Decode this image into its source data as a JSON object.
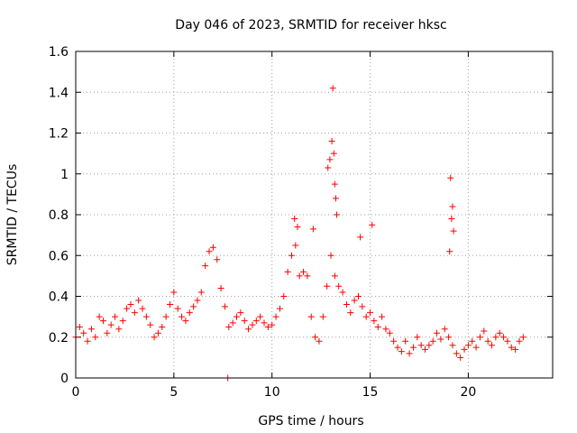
{
  "chart_data": {
    "type": "scatter",
    "title": "Day 046 of 2023, SRMTID for receiver hksc",
    "xlabel": "GPS time / hours",
    "ylabel": "SRMTID / TECUs",
    "xlim": [
      0,
      24.3
    ],
    "ylim": [
      0,
      1.6
    ],
    "xticks": [
      0,
      5,
      10,
      15,
      20
    ],
    "yticks": [
      0,
      0.2,
      0.4,
      0.6,
      0.8,
      1,
      1.2,
      1.4,
      1.6
    ],
    "ytick_labels": [
      "0",
      "0.2",
      "0.4",
      "0.6",
      "0.8",
      "1",
      "1.2",
      "1.4",
      "1.6"
    ],
    "grid": true,
    "marker": "+",
    "color": "#ff0000",
    "series": [
      {
        "name": "SRMTID",
        "x": [
          0.0,
          0.2,
          0.4,
          0.6,
          0.8,
          1.0,
          1.2,
          1.4,
          1.6,
          1.8,
          2.0,
          2.2,
          2.4,
          2.6,
          2.8,
          3.0,
          3.2,
          3.4,
          3.6,
          3.8,
          4.0,
          4.2,
          4.4,
          4.6,
          4.8,
          5.0,
          5.2,
          5.4,
          5.6,
          5.8,
          6.0,
          6.2,
          6.4,
          6.6,
          6.8,
          7.0,
          7.2,
          7.4,
          7.6,
          7.8,
          8.0,
          8.2,
          8.4,
          8.6,
          8.8,
          9.0,
          9.2,
          9.4,
          9.6,
          9.8,
          10.0,
          10.2,
          10.4,
          10.6,
          10.8,
          11.0,
          11.2,
          11.4,
          11.6,
          11.8,
          12.0,
          12.2,
          12.4,
          12.6,
          12.8,
          13.0,
          13.2,
          13.4,
          13.6,
          13.8,
          14.0,
          14.2,
          14.4,
          14.6,
          14.8,
          15.0,
          15.2,
          15.4,
          15.6,
          15.8,
          16.0,
          16.2,
          16.4,
          16.6,
          16.8,
          17.0,
          17.2,
          17.4,
          17.6,
          17.8,
          18.0,
          18.2,
          18.4,
          18.6,
          18.8,
          19.0,
          19.2,
          19.4,
          19.6,
          19.8,
          20.0,
          20.2,
          20.4,
          20.6,
          20.8,
          21.0,
          21.2,
          21.4,
          21.6,
          21.8,
          22.0,
          22.2,
          22.4,
          22.6,
          22.8,
          13.1,
          13.15,
          13.05,
          13.2,
          13.25,
          12.95,
          12.85,
          13.3,
          19.1,
          19.2,
          19.15,
          19.25,
          19.05,
          15.1,
          14.5,
          11.15,
          11.3,
          12.1,
          7.75
        ],
        "y": [
          0.2,
          0.25,
          0.22,
          0.18,
          0.24,
          0.2,
          0.3,
          0.28,
          0.22,
          0.26,
          0.3,
          0.24,
          0.28,
          0.34,
          0.36,
          0.32,
          0.38,
          0.34,
          0.3,
          0.26,
          0.2,
          0.22,
          0.25,
          0.3,
          0.36,
          0.42,
          0.34,
          0.3,
          0.28,
          0.32,
          0.35,
          0.38,
          0.42,
          0.55,
          0.62,
          0.64,
          0.58,
          0.44,
          0.35,
          0.25,
          0.27,
          0.3,
          0.32,
          0.28,
          0.24,
          0.26,
          0.28,
          0.3,
          0.27,
          0.25,
          0.26,
          0.3,
          0.34,
          0.4,
          0.52,
          0.6,
          0.65,
          0.5,
          0.52,
          0.5,
          0.3,
          0.2,
          0.18,
          0.3,
          0.45,
          0.6,
          0.5,
          0.45,
          0.42,
          0.36,
          0.32,
          0.38,
          0.4,
          0.35,
          0.3,
          0.32,
          0.28,
          0.25,
          0.3,
          0.24,
          0.22,
          0.18,
          0.15,
          0.13,
          0.18,
          0.12,
          0.15,
          0.2,
          0.16,
          0.14,
          0.16,
          0.18,
          0.22,
          0.19,
          0.24,
          0.2,
          0.16,
          0.12,
          0.1,
          0.14,
          0.16,
          0.18,
          0.15,
          0.2,
          0.23,
          0.18,
          0.16,
          0.2,
          0.22,
          0.2,
          0.18,
          0.15,
          0.14,
          0.18,
          0.2,
          1.42,
          1.1,
          1.16,
          0.95,
          0.88,
          1.07,
          1.03,
          0.8,
          0.98,
          0.84,
          0.78,
          0.72,
          0.62,
          0.75,
          0.69,
          0.78,
          0.74,
          0.73,
          0.0
        ]
      }
    ]
  }
}
